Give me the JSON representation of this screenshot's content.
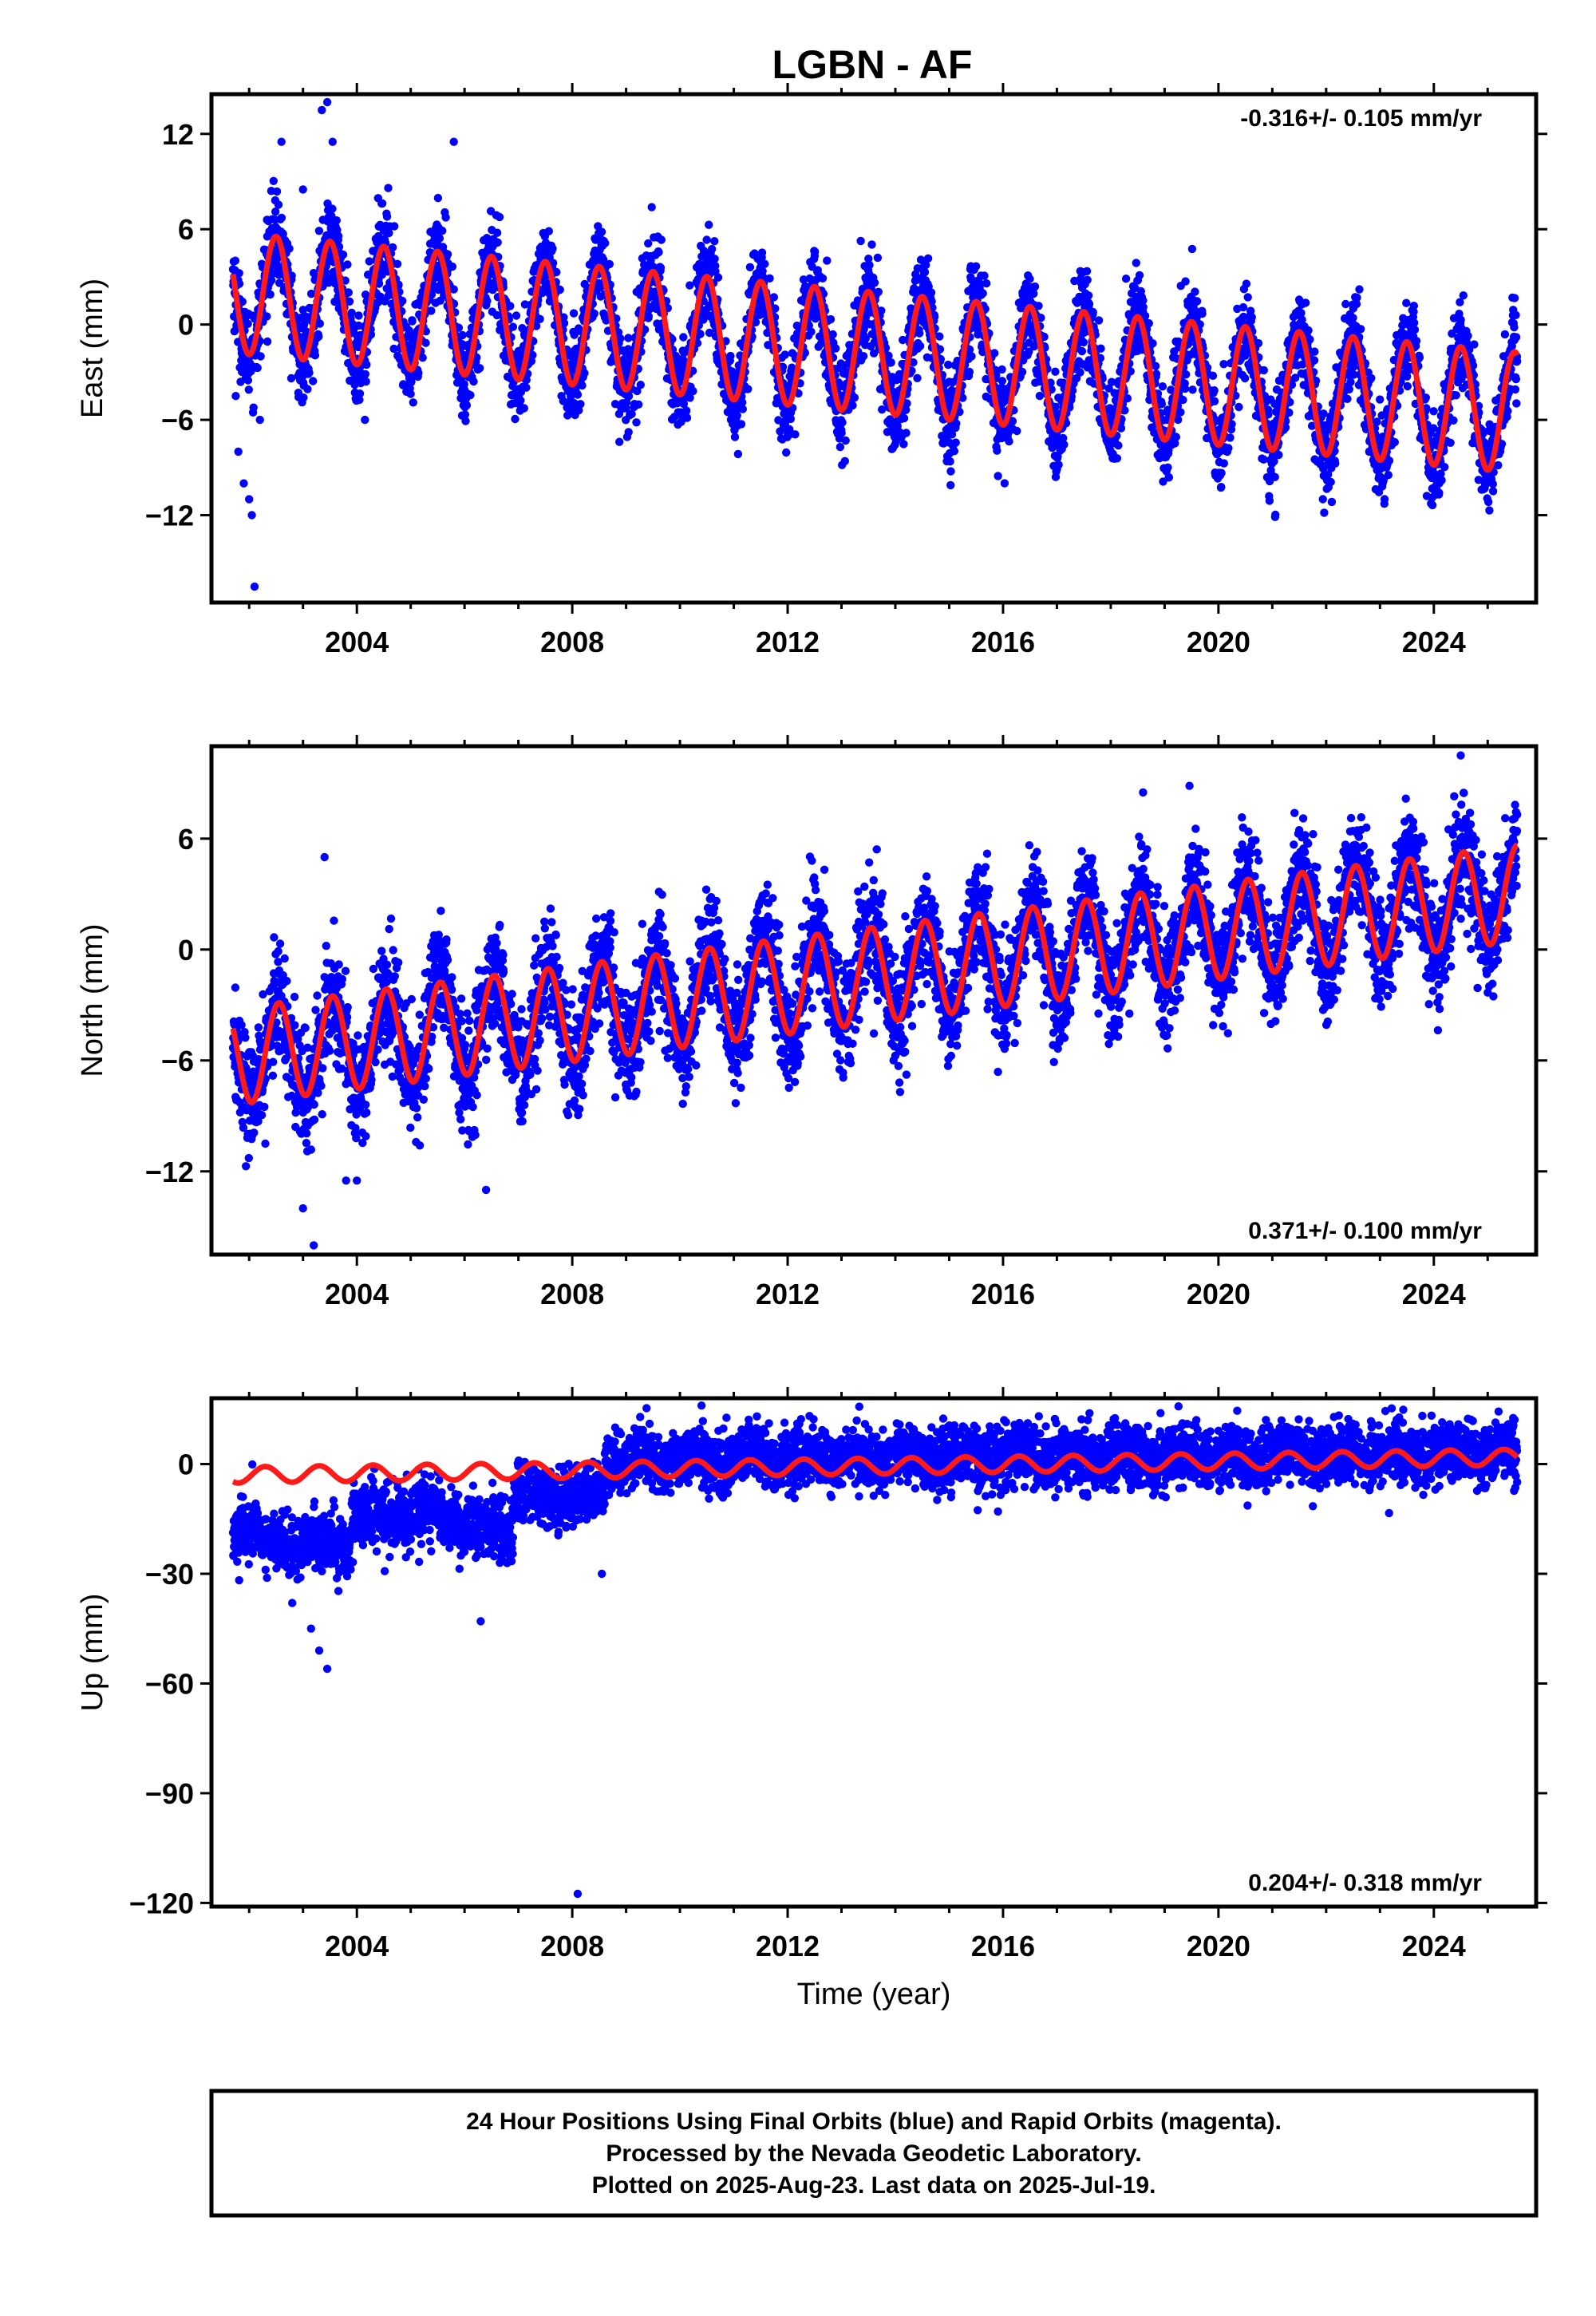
{
  "title": "LGBN - AF",
  "colors": {
    "points": "#0000ff",
    "fit": "#ff1a1a",
    "axes": "#000000"
  },
  "footer": {
    "line1": "24 Hour Positions Using Final Orbits (blue) and Rapid Orbits (magenta).",
    "line2": "Processed by the Nevada Geodetic Laboratory.",
    "line3": "Plotted on 2025-Aug-23. Last data on 2025-Jul-19."
  },
  "chart_data": [
    {
      "type": "scatter",
      "component": "east",
      "ylabel": "East (mm)",
      "xlabel": "",
      "xlim": [
        2001.3,
        2025.9
      ],
      "ylim": [
        -17.5,
        14.5
      ],
      "xticks": [
        2004,
        2008,
        2012,
        2016,
        2020,
        2024
      ],
      "yticks": [
        12,
        6,
        0,
        -6,
        -12
      ],
      "ytick_labels": [
        "12",
        "6",
        "0",
        "−6",
        "−12"
      ],
      "rate_label": "-0.316+/- 0.105 mm/yr",
      "rate_position": "top-right",
      "series": [
        {
          "kind": "points",
          "start": 2001.7,
          "end": 2025.55,
          "offset_at_start": 2.0,
          "rate_mm_yr": -0.316,
          "annual_amp": 3.8,
          "peak_phase": 0.5,
          "noise": 1.4,
          "outliers": [
            [
              2001.75,
              -4.5
            ],
            [
              2001.8,
              -8.0
            ],
            [
              2001.9,
              -10.0
            ],
            [
              2002.0,
              -11.0
            ],
            [
              2002.05,
              -12.0
            ],
            [
              2002.1,
              -16.5
            ],
            [
              2002.2,
              -6.0
            ],
            [
              2002.6,
              11.5
            ],
            [
              2003.0,
              8.5
            ],
            [
              2003.35,
              13.5
            ],
            [
              2003.45,
              14.0
            ],
            [
              2003.55,
              11.5
            ],
            [
              2005.8,
              11.5
            ],
            [
              2004.15,
              -6.0
            ],
            [
              2007.8,
              -4.5
            ],
            [
              2008.8,
              -5.0
            ],
            [
              2014.9,
              -7.3
            ],
            [
              2017.9,
              -7.0
            ],
            [
              2022.8,
              -8.0
            ],
            [
              2023.9,
              -9.0
            ]
          ]
        },
        {
          "kind": "fit",
          "start": 2001.7,
          "end": 2025.55,
          "offset_at_start": 2.0,
          "rate_mm_yr": -0.316,
          "annual_amp": 3.8,
          "peak_phase": 0.5
        }
      ]
    },
    {
      "type": "scatter",
      "component": "north",
      "ylabel": "North (mm)",
      "xlabel": "",
      "xlim": [
        2001.3,
        2025.9
      ],
      "ylim": [
        -16.5,
        11.0
      ],
      "xticks": [
        2004,
        2008,
        2012,
        2016,
        2020,
        2024
      ],
      "yticks": [
        6,
        0,
        -6,
        -12
      ],
      "ytick_labels": [
        "6",
        "0",
        "−6",
        "−12"
      ],
      "rate_label": "0.371+/- 0.100 mm/yr",
      "rate_position": "bottom-right",
      "series": [
        {
          "kind": "points",
          "start": 2001.7,
          "end": 2025.55,
          "offset_at_start": -5.8,
          "rate_mm_yr": 0.371,
          "annual_amp": 2.6,
          "peak_phase": 0.55,
          "noise": 1.5,
          "outliers": [
            [
              2003.4,
              5.0
            ],
            [
              2003.0,
              -14.0
            ],
            [
              2003.2,
              -16.0
            ],
            [
              2003.8,
              -12.5
            ],
            [
              2004.0,
              -12.5
            ],
            [
              2006.4,
              -13.0
            ],
            [
              2008.8,
              -8.0
            ],
            [
              2002.3,
              -10.5
            ],
            [
              2018.6,
              8.5
            ],
            [
              2024.5,
              10.5
            ],
            [
              2020.1,
              -1.5
            ]
          ]
        },
        {
          "kind": "fit",
          "start": 2001.7,
          "end": 2025.55,
          "offset_at_start": -5.8,
          "rate_mm_yr": 0.371,
          "annual_amp": 2.6,
          "peak_phase": 0.55
        }
      ]
    },
    {
      "type": "scatter",
      "component": "up",
      "ylabel": "Up (mm)",
      "xlabel": "Time (year)",
      "xlim": [
        2001.3,
        2025.9
      ],
      "ylim": [
        -121,
        18
      ],
      "xticks": [
        2004,
        2008,
        2012,
        2016,
        2020,
        2024
      ],
      "yticks": [
        0,
        -30,
        -60,
        -90,
        -120
      ],
      "ytick_labels": [
        "0",
        "−30",
        "−60",
        "−90",
        "−120"
      ],
      "rate_label": "0.204+/- 0.318 mm/yr",
      "rate_position": "bottom-right",
      "series": [
        {
          "kind": "points",
          "start": 2001.7,
          "end": 2025.55,
          "noise": 4.0,
          "segments": [
            [
              2001.7,
              2002.2,
              -18
            ],
            [
              2002.2,
              2003.9,
              -22
            ],
            [
              2003.9,
              2005.9,
              -14
            ],
            [
              2005.9,
              2006.9,
              -18
            ],
            [
              2006.9,
              2008.6,
              -10
            ],
            [
              2008.6,
              2025.55,
              0
            ]
          ],
          "outliers": [
            [
              2002.8,
              -38.0
            ],
            [
              2003.15,
              -45.0
            ],
            [
              2003.3,
              -51.0
            ],
            [
              2003.45,
              -56.0
            ],
            [
              2006.3,
              -43.0
            ],
            [
              2008.1,
              -117.5
            ],
            [
              2008.55,
              -30.0
            ],
            [
              2010.4,
              16.0
            ],
            [
              2023.1,
              14.5
            ]
          ]
        },
        {
          "kind": "fit",
          "start": 2001.7,
          "end": 2025.55,
          "offset_at_start": -3.0,
          "rate_mm_yr": 0.204,
          "annual_amp": 2.2,
          "peak_phase": 0.3
        }
      ]
    }
  ]
}
